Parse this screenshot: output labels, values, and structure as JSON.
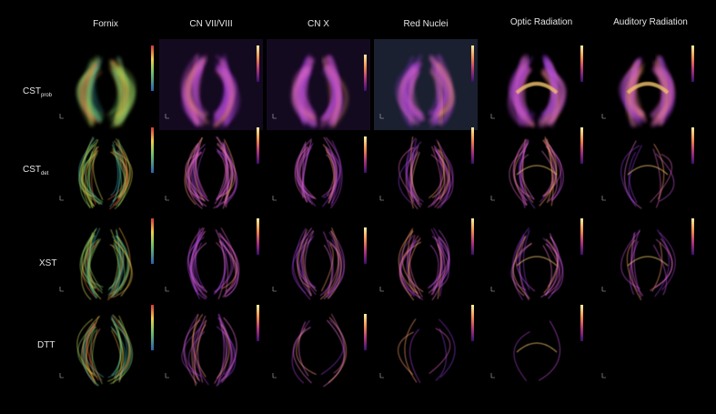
{
  "columns": [
    "Fornix",
    "CN VII/VIII",
    "CN X",
    "Red Nuclei",
    "Optic Radiation",
    "Auditory Radiation"
  ],
  "rows": [
    {
      "label": "CST",
      "subscript": "prob"
    },
    {
      "label": "CST",
      "subscript": "det"
    },
    {
      "label": "XST"
    },
    {
      "label": "DTT"
    }
  ]
}
